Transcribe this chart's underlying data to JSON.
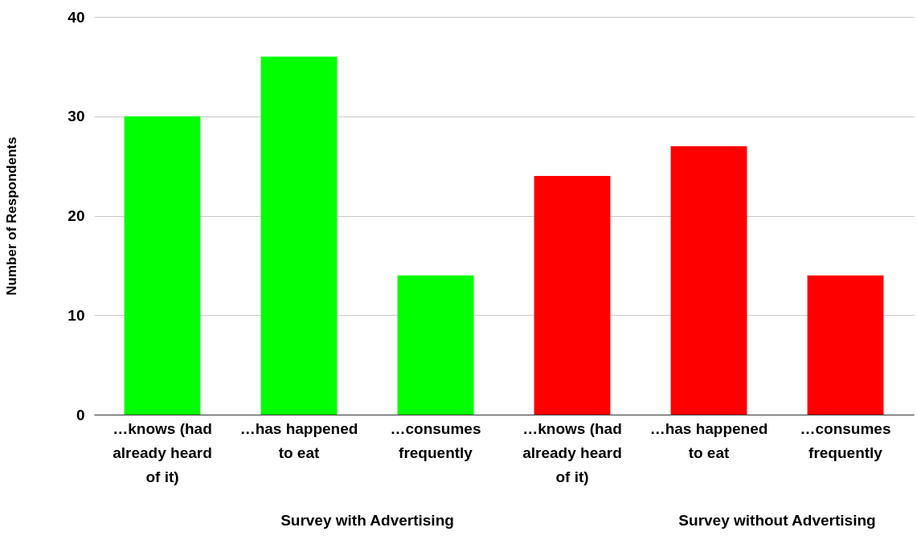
{
  "chart_data": {
    "type": "bar",
    "ylabel": "Number of Respondents",
    "categories": [
      "…knows (had already heard of it)",
      "…has happened to eat",
      "…consumes frequently",
      "…knows (had already heard of it)",
      "…has happened to eat",
      "…consumes frequently"
    ],
    "series": [
      {
        "color": "#00ff00",
        "values": [
          30,
          36,
          14,
          null,
          null,
          null
        ]
      },
      {
        "color": "#ff0000",
        "values": [
          null,
          null,
          null,
          24,
          27,
          14
        ]
      }
    ],
    "annotations": [
      "Survey with Advertising",
      "Survey without Advertising"
    ],
    "ylim": [
      0,
      40
    ],
    "yticks": [
      0,
      10,
      20,
      30,
      40
    ],
    "grid": "y",
    "legend": false
  }
}
